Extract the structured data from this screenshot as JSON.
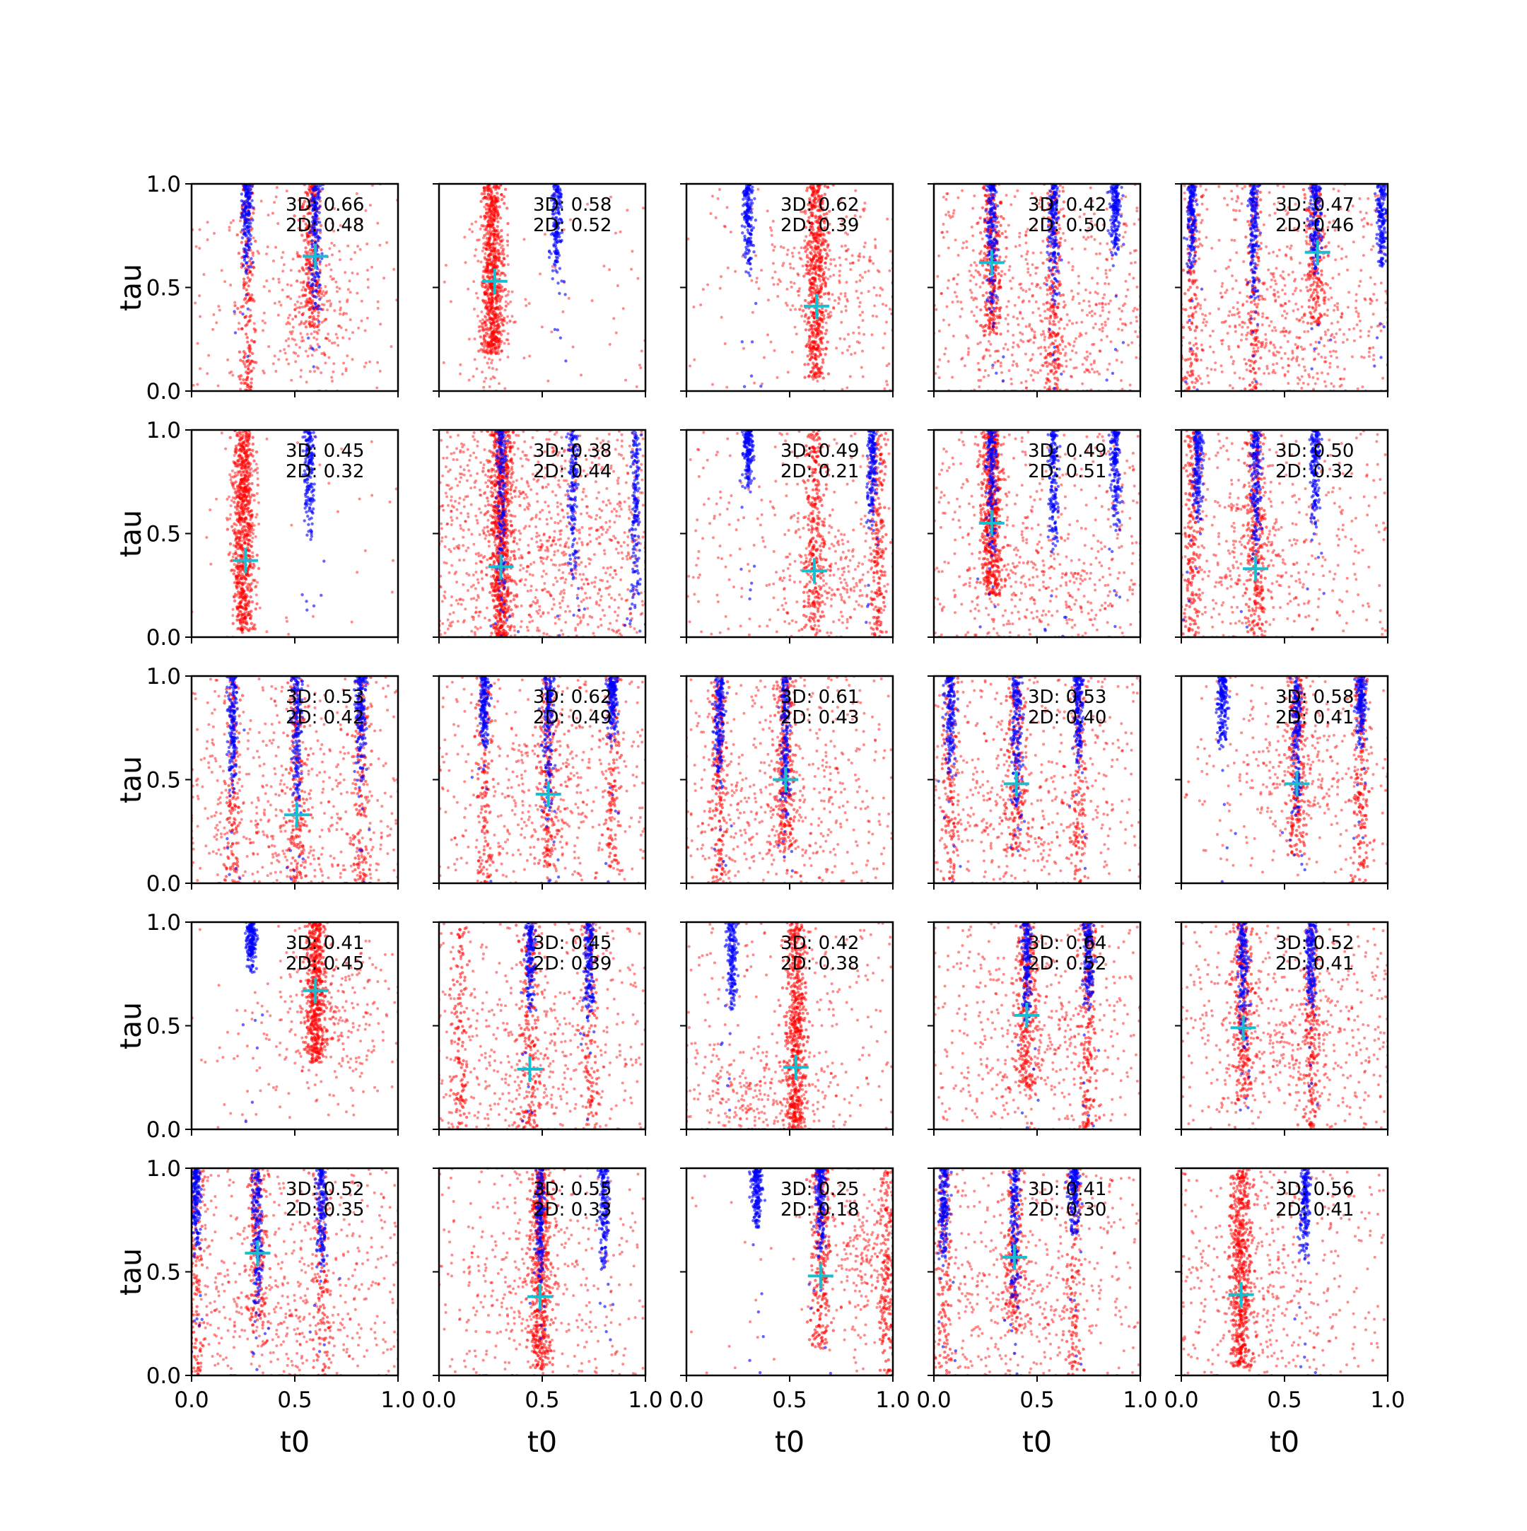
{
  "figure": {
    "type": "scatter-grid",
    "rows": 5,
    "cols": 5,
    "xlabel": "t0",
    "ylabel": "tau",
    "xlim": [
      0,
      1
    ],
    "ylim": [
      0,
      1
    ],
    "xticks": [
      "0.0",
      "0.5",
      "1.0"
    ],
    "yticks": [
      "0.0",
      "0.5",
      "1.0"
    ],
    "colors": {
      "red_series": "#ff0000",
      "blue_series": "#0000ff",
      "marker": "#17becf"
    }
  },
  "chart_data": {
    "type": "scatter",
    "panels": [
      {
        "annotation": [
          "3D: 0.66",
          "2D: 0.48"
        ],
        "marker": [
          0.6,
          0.65
        ],
        "blue_cols": [
          0.27,
          0.6
        ],
        "blue_tops": [
          0.55,
          0.35
        ],
        "red_cols": [
          0.27,
          0.58
        ],
        "red_center": [
          0.58,
          0.4
        ],
        "red_spread": [
          0.22,
          0.3
        ],
        "red_n": 600,
        "noise": 0.25
      },
      {
        "annotation": [
          "3D: 0.58",
          "2D: 0.52"
        ],
        "marker": [
          0.27,
          0.53
        ],
        "blue_cols": [
          0.57
        ],
        "blue_tops": [
          0.5
        ],
        "red_cols": [
          0.26
        ],
        "red_center": [
          0.26,
          0.45
        ],
        "red_spread": [
          0.08,
          0.35
        ],
        "red_n": 700,
        "noise": 0.1
      },
      {
        "annotation": [
          "3D: 0.62",
          "2D: 0.39"
        ],
        "marker": [
          0.63,
          0.41
        ],
        "blue_cols": [
          0.3
        ],
        "blue_tops": [
          0.55
        ],
        "red_cols": [
          0.63
        ],
        "red_center": [
          0.7,
          0.55
        ],
        "red_spread": [
          0.25,
          0.3
        ],
        "red_n": 650,
        "noise": 0.15
      },
      {
        "annotation": [
          "3D: 0.42",
          "2D: 0.50"
        ],
        "marker": [
          0.28,
          0.62
        ],
        "blue_cols": [
          0.28,
          0.58,
          0.88
        ],
        "blue_tops": [
          0.35,
          0.4,
          0.65
        ],
        "red_cols": [
          0.28,
          0.58
        ],
        "red_center": [
          0.55,
          0.25
        ],
        "red_spread": [
          0.4,
          0.3
        ],
        "red_n": 650,
        "noise": 0.6
      },
      {
        "annotation": [
          "3D: 0.47",
          "2D: 0.46"
        ],
        "marker": [
          0.66,
          0.67
        ],
        "blue_cols": [
          0.05,
          0.35,
          0.65,
          0.97
        ],
        "blue_tops": [
          0.55,
          0.4,
          0.55,
          0.55
        ],
        "red_cols": [
          0.05,
          0.35,
          0.65
        ],
        "red_center": [
          0.5,
          0.3
        ],
        "red_spread": [
          0.45,
          0.3
        ],
        "red_n": 650,
        "noise": 0.6
      },
      {
        "annotation": [
          "3D: 0.45",
          "2D: 0.32"
        ],
        "marker": [
          0.26,
          0.37
        ],
        "blue_cols": [
          0.57
        ],
        "blue_tops": [
          0.45
        ],
        "red_cols": [
          0.25
        ],
        "red_center": [
          0.25,
          0.55
        ],
        "red_spread": [
          0.06,
          0.35
        ],
        "red_n": 700,
        "noise": 0.05
      },
      {
        "annotation": [
          "3D: 0.38",
          "2D: 0.44"
        ],
        "marker": [
          0.3,
          0.34
        ],
        "blue_cols": [
          0.3,
          0.65,
          0.95
        ],
        "blue_tops": [
          0.1,
          0.2,
          0.1
        ],
        "red_cols": [
          0.3
        ],
        "red_center": [
          0.5,
          0.4
        ],
        "red_spread": [
          0.45,
          0.4
        ],
        "red_n": 900,
        "noise": 0.8
      },
      {
        "annotation": [
          "3D: 0.49",
          "2D: 0.21"
        ],
        "marker": [
          0.62,
          0.32
        ],
        "blue_cols": [
          0.3,
          0.9
        ],
        "blue_tops": [
          0.7,
          0.5
        ],
        "red_cols": [
          0.62,
          0.93
        ],
        "red_center": [
          0.72,
          0.3
        ],
        "red_spread": [
          0.25,
          0.25
        ],
        "red_n": 650,
        "noise": 0.3
      },
      {
        "annotation": [
          "3D: 0.49",
          "2D: 0.51"
        ],
        "marker": [
          0.28,
          0.55
        ],
        "blue_cols": [
          0.28,
          0.58,
          0.88
        ],
        "blue_tops": [
          0.35,
          0.4,
          0.5
        ],
        "red_cols": [
          0.28
        ],
        "red_center": [
          0.5,
          0.25
        ],
        "red_spread": [
          0.4,
          0.3
        ],
        "red_n": 650,
        "noise": 0.55
      },
      {
        "annotation": [
          "3D: 0.50",
          "2D: 0.32"
        ],
        "marker": [
          0.36,
          0.33
        ],
        "blue_cols": [
          0.08,
          0.36,
          0.65
        ],
        "blue_tops": [
          0.55,
          0.4,
          0.5
        ],
        "red_cols": [
          0.05,
          0.36
        ],
        "red_center": [
          0.35,
          0.35
        ],
        "red_spread": [
          0.3,
          0.35
        ],
        "red_n": 650,
        "noise": 0.4
      },
      {
        "annotation": [
          "3D: 0.53",
          "2D: 0.42"
        ],
        "marker": [
          0.51,
          0.33
        ],
        "blue_cols": [
          0.2,
          0.51,
          0.82
        ],
        "blue_tops": [
          0.4,
          0.25,
          0.45
        ],
        "red_cols": [
          0.2,
          0.51,
          0.82
        ],
        "red_center": [
          0.5,
          0.25
        ],
        "red_spread": [
          0.45,
          0.3
        ],
        "red_n": 650,
        "noise": 0.55
      },
      {
        "annotation": [
          "3D: 0.62",
          "2D: 0.49"
        ],
        "marker": [
          0.53,
          0.43
        ],
        "blue_cols": [
          0.22,
          0.53,
          0.84
        ],
        "blue_tops": [
          0.65,
          0.3,
          0.65
        ],
        "red_cols": [
          0.22,
          0.53,
          0.84
        ],
        "red_center": [
          0.5,
          0.4
        ],
        "red_spread": [
          0.35,
          0.35
        ],
        "red_n": 650,
        "noise": 0.45
      },
      {
        "annotation": [
          "3D: 0.61",
          "2D: 0.43"
        ],
        "marker": [
          0.48,
          0.5
        ],
        "blue_cols": [
          0.16,
          0.48
        ],
        "blue_tops": [
          0.45,
          0.25
        ],
        "red_cols": [
          0.16,
          0.48
        ],
        "red_center": [
          0.45,
          0.35
        ],
        "red_spread": [
          0.4,
          0.35
        ],
        "red_n": 650,
        "noise": 0.5
      },
      {
        "annotation": [
          "3D: 0.53",
          "2D: 0.40"
        ],
        "marker": [
          0.4,
          0.48
        ],
        "blue_cols": [
          0.08,
          0.4,
          0.7
        ],
        "blue_tops": [
          0.5,
          0.3,
          0.55
        ],
        "red_cols": [
          0.08,
          0.4,
          0.7
        ],
        "red_center": [
          0.4,
          0.35
        ],
        "red_spread": [
          0.4,
          0.35
        ],
        "red_n": 650,
        "noise": 0.5
      },
      {
        "annotation": [
          "3D: 0.58",
          "2D: 0.41"
        ],
        "marker": [
          0.56,
          0.48
        ],
        "blue_cols": [
          0.2,
          0.56,
          0.87
        ],
        "blue_tops": [
          0.65,
          0.3,
          0.65
        ],
        "red_cols": [
          0.56,
          0.87
        ],
        "red_center": [
          0.6,
          0.55
        ],
        "red_spread": [
          0.3,
          0.25
        ],
        "red_n": 600,
        "noise": 0.25
      },
      {
        "annotation": [
          "3D: 0.41",
          "2D: 0.45"
        ],
        "marker": [
          0.6,
          0.67
        ],
        "blue_cols": [
          0.29
        ],
        "blue_tops": [
          0.75
        ],
        "red_cols": [
          0.6
        ],
        "red_center": [
          0.65,
          0.55
        ],
        "red_spread": [
          0.25,
          0.3
        ],
        "red_n": 650,
        "noise": 0.15
      },
      {
        "annotation": [
          "3D: 0.45",
          "2D: 0.39"
        ],
        "marker": [
          0.44,
          0.29
        ],
        "blue_cols": [
          0.44,
          0.73
        ],
        "blue_tops": [
          0.55,
          0.5
        ],
        "red_cols": [
          0.1,
          0.44,
          0.73
        ],
        "red_center": [
          0.4,
          0.3
        ],
        "red_spread": [
          0.35,
          0.3
        ],
        "red_n": 650,
        "noise": 0.45
      },
      {
        "annotation": [
          "3D: 0.42",
          "2D: 0.38"
        ],
        "marker": [
          0.53,
          0.3
        ],
        "blue_cols": [
          0.22
        ],
        "blue_tops": [
          0.55
        ],
        "red_cols": [
          0.53
        ],
        "red_center": [
          0.35,
          0.15
        ],
        "red_spread": [
          0.35,
          0.2
        ],
        "red_n": 700,
        "noise": 0.3
      },
      {
        "annotation": [
          "3D: 0.64",
          "2D: 0.52"
        ],
        "marker": [
          0.45,
          0.55
        ],
        "blue_cols": [
          0.45,
          0.75
        ],
        "blue_tops": [
          0.45,
          0.55
        ],
        "red_cols": [
          0.45,
          0.75
        ],
        "red_center": [
          0.5,
          0.4
        ],
        "red_spread": [
          0.35,
          0.35
        ],
        "red_n": 650,
        "noise": 0.45
      },
      {
        "annotation": [
          "3D: 0.52",
          "2D: 0.41"
        ],
        "marker": [
          0.3,
          0.49
        ],
        "blue_cols": [
          0.3,
          0.63
        ],
        "blue_tops": [
          0.35,
          0.55
        ],
        "red_cols": [
          0.3,
          0.63
        ],
        "red_center": [
          0.5,
          0.4
        ],
        "red_spread": [
          0.4,
          0.35
        ],
        "red_n": 650,
        "noise": 0.55
      },
      {
        "annotation": [
          "3D: 0.52",
          "2D: 0.35"
        ],
        "marker": [
          0.32,
          0.59
        ],
        "blue_cols": [
          0.02,
          0.32,
          0.63
        ],
        "blue_tops": [
          0.55,
          0.25,
          0.5
        ],
        "red_cols": [
          0.02,
          0.32,
          0.63
        ],
        "red_center": [
          0.45,
          0.3
        ],
        "red_spread": [
          0.45,
          0.35
        ],
        "red_n": 650,
        "noise": 0.55
      },
      {
        "annotation": [
          "3D: 0.55",
          "2D: 0.33"
        ],
        "marker": [
          0.49,
          0.38
        ],
        "blue_cols": [
          0.49,
          0.8
        ],
        "blue_tops": [
          0.4,
          0.5
        ],
        "red_cols": [
          0.49
        ],
        "red_center": [
          0.45,
          0.4
        ],
        "red_spread": [
          0.3,
          0.4
        ],
        "red_n": 650,
        "noise": 0.35
      },
      {
        "annotation": [
          "3D: 0.25",
          "2D: 0.18"
        ],
        "marker": [
          0.65,
          0.48
        ],
        "blue_cols": [
          0.34,
          0.65
        ],
        "blue_tops": [
          0.7,
          0.55
        ],
        "red_cols": [
          0.65,
          0.97
        ],
        "red_center": [
          0.85,
          0.6
        ],
        "red_spread": [
          0.15,
          0.3
        ],
        "red_n": 650,
        "noise": 0.05
      },
      {
        "annotation": [
          "3D: 0.41",
          "2D: 0.30"
        ],
        "marker": [
          0.39,
          0.57
        ],
        "blue_cols": [
          0.05,
          0.39,
          0.68
        ],
        "blue_tops": [
          0.5,
          0.3,
          0.65
        ],
        "red_cols": [
          0.05,
          0.39,
          0.68
        ],
        "red_center": [
          0.35,
          0.4
        ],
        "red_spread": [
          0.35,
          0.35
        ],
        "red_n": 650,
        "noise": 0.45
      },
      {
        "annotation": [
          "3D: 0.56",
          "2D: 0.41"
        ],
        "marker": [
          0.29,
          0.39
        ],
        "blue_cols": [
          0.6
        ],
        "blue_tops": [
          0.5
        ],
        "red_cols": [
          0.29
        ],
        "red_center": [
          0.35,
          0.4
        ],
        "red_spread": [
          0.3,
          0.35
        ],
        "red_n": 650,
        "noise": 0.4
      }
    ]
  }
}
